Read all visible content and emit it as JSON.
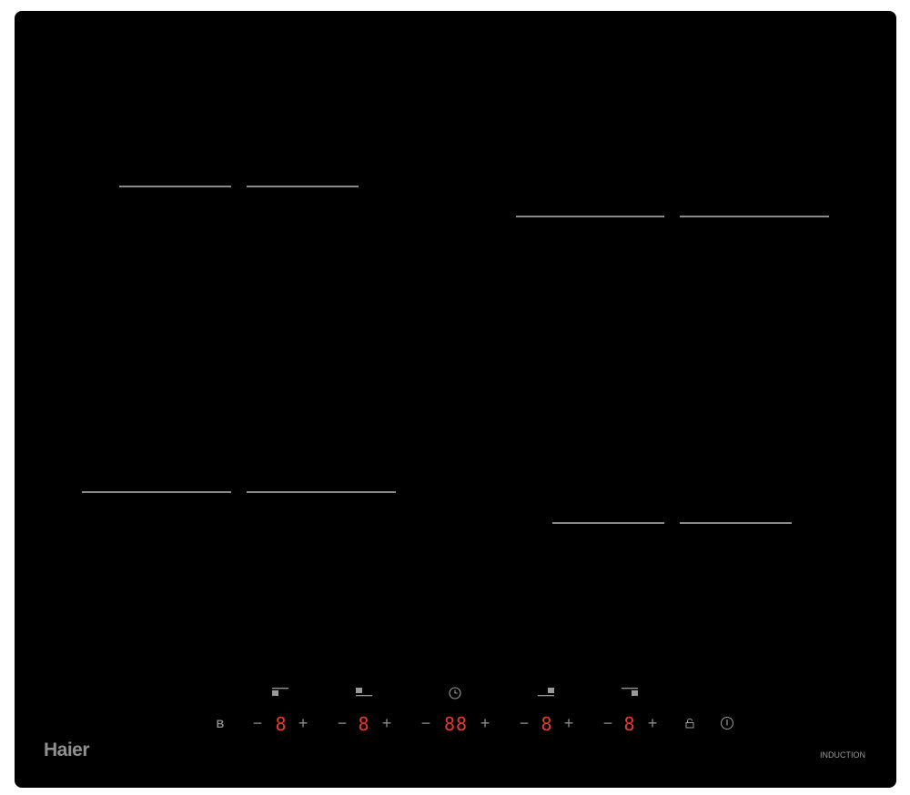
{
  "brand": "Haier",
  "product_label": "INDUCTION",
  "controls": {
    "booster_label": "B",
    "minus": "−",
    "plus": "+",
    "zones": [
      {
        "icon": "zone-rear-left-icon",
        "display": "8"
      },
      {
        "icon": "zone-front-left-icon",
        "display": "8"
      },
      {
        "icon": "zone-front-right-icon",
        "display": "8"
      },
      {
        "icon": "zone-rear-right-icon",
        "display": "8"
      }
    ],
    "timer": {
      "icon": "clock-icon",
      "display": "88"
    },
    "lock_icon": "lock-icon",
    "power_icon": "power-icon"
  },
  "colors": {
    "glass": "#000000",
    "display": "#e8392e",
    "markings": "#8a8a8a"
  }
}
